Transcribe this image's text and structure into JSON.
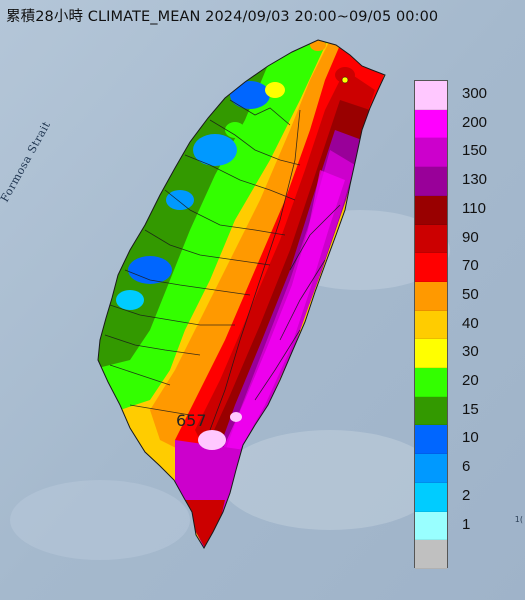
{
  "title": "累積28小時 CLIMATE_MEAN 2024/09/03 20:00~09/05 00:00",
  "sea_label": "Formosa Strait",
  "max_value_label": "657",
  "corner_text": "1(",
  "legend": {
    "entries": [
      {
        "label": "300",
        "color": "#ffc8ff"
      },
      {
        "label": "200",
        "color": "#ff00ff"
      },
      {
        "label": "150",
        "color": "#cc00cc"
      },
      {
        "label": "130",
        "color": "#990099"
      },
      {
        "label": "110",
        "color": "#990000"
      },
      {
        "label": "90",
        "color": "#cc0000"
      },
      {
        "label": "70",
        "color": "#ff0000"
      },
      {
        "label": "50",
        "color": "#ff9900"
      },
      {
        "label": "40",
        "color": "#ffcc00"
      },
      {
        "label": "30",
        "color": "#ffff00"
      },
      {
        "label": "20",
        "color": "#33ff00"
      },
      {
        "label": "15",
        "color": "#339900"
      },
      {
        "label": "10",
        "color": "#0066ff"
      },
      {
        "label": "6",
        "color": "#0099ff"
      },
      {
        "label": "2",
        "color": "#00ccff"
      },
      {
        "label": "1",
        "color": "#99ffff"
      },
      {
        "label": "",
        "color": "#c0c0c0"
      }
    ]
  },
  "colors": {
    "sea": "#a9bdd0",
    "border": "#1a1a1a"
  }
}
